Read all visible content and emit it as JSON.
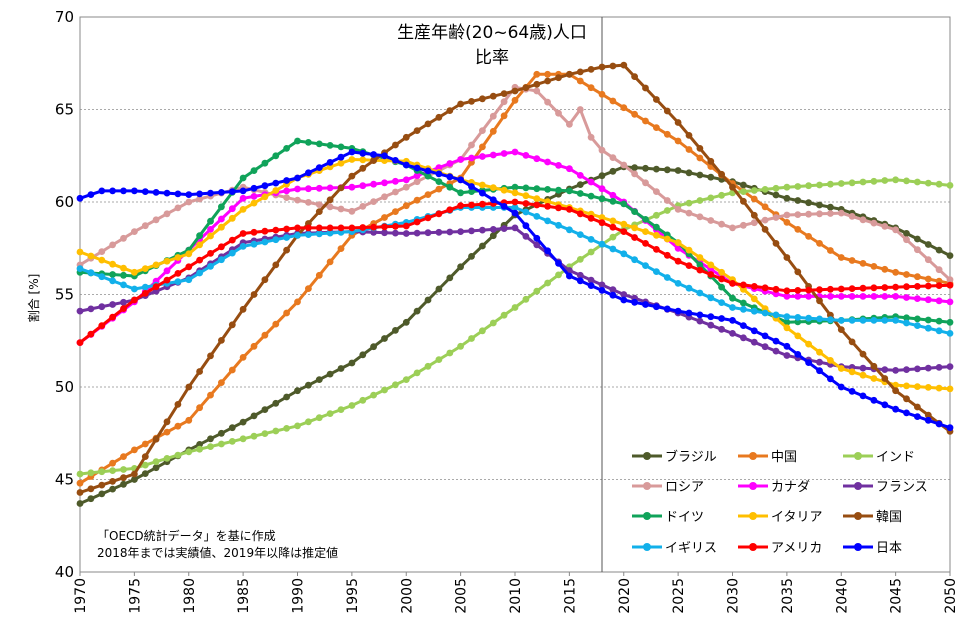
{
  "chart_data": {
    "type": "line",
    "title": "生産年齢(20~64歳)人口",
    "subtitle": "比率",
    "ylabel": "割合 [%]",
    "xlabel": "",
    "xlim": [
      1970,
      2050
    ],
    "ylim": [
      40,
      70
    ],
    "yticks": [
      40,
      45,
      50,
      55,
      60,
      65,
      70
    ],
    "xticks": [
      1970,
      1975,
      1980,
      1985,
      1990,
      1995,
      2000,
      2005,
      2010,
      2015,
      2020,
      2025,
      2030,
      2035,
      2040,
      2045,
      2050
    ],
    "grid": "horizontal",
    "reference_line_x": 2018,
    "legend_position": "bottom-right",
    "notes": [
      "「OECD統計データ」を基に作成",
      "2018年までは実績値、2019年以降は推定値"
    ],
    "series": [
      {
        "name": "ブラジル",
        "color": "#4e5a2a",
        "points": [
          [
            1970,
            43.7
          ],
          [
            1975,
            45.0
          ],
          [
            1980,
            46.6
          ],
          [
            1985,
            48.1
          ],
          [
            1990,
            49.8
          ],
          [
            1995,
            51.3
          ],
          [
            2000,
            53.5
          ],
          [
            2005,
            56.5
          ],
          [
            2010,
            59.3
          ],
          [
            2015,
            60.7
          ],
          [
            2020,
            61.9
          ],
          [
            2025,
            61.7
          ],
          [
            2030,
            61.1
          ],
          [
            2035,
            60.2
          ],
          [
            2040,
            59.6
          ],
          [
            2045,
            58.6
          ],
          [
            2050,
            57.1
          ]
        ]
      },
      {
        "name": "中国",
        "color": "#e8791f",
        "points": [
          [
            1970,
            44.8
          ],
          [
            1975,
            46.6
          ],
          [
            1980,
            48.2
          ],
          [
            1985,
            51.6
          ],
          [
            1990,
            54.6
          ],
          [
            1995,
            58.2
          ],
          [
            2000,
            59.8
          ],
          [
            2005,
            61.3
          ],
          [
            2010,
            65.5
          ],
          [
            2012,
            66.9
          ],
          [
            2015,
            66.9
          ],
          [
            2020,
            65.1
          ],
          [
            2025,
            63.3
          ],
          [
            2030,
            61.0
          ],
          [
            2035,
            58.9
          ],
          [
            2040,
            57.0
          ],
          [
            2045,
            56.2
          ],
          [
            2050,
            55.6
          ]
        ]
      },
      {
        "name": "インド",
        "color": "#9ccf57",
        "points": [
          [
            1970,
            45.3
          ],
          [
            1975,
            45.6
          ],
          [
            1980,
            46.5
          ],
          [
            1985,
            47.2
          ],
          [
            1990,
            47.9
          ],
          [
            1995,
            49.0
          ],
          [
            2000,
            50.4
          ],
          [
            2005,
            52.2
          ],
          [
            2010,
            54.3
          ],
          [
            2015,
            56.5
          ],
          [
            2020,
            58.5
          ],
          [
            2025,
            59.8
          ],
          [
            2030,
            60.5
          ],
          [
            2035,
            60.8
          ],
          [
            2040,
            61.0
          ],
          [
            2045,
            61.2
          ],
          [
            2050,
            60.9
          ]
        ]
      },
      {
        "name": "ロシア",
        "color": "#d89a9a",
        "points": [
          [
            1970,
            56.6
          ],
          [
            1975,
            58.4
          ],
          [
            1980,
            60.0
          ],
          [
            1985,
            60.8
          ],
          [
            1990,
            60.1
          ],
          [
            1995,
            59.5
          ],
          [
            2000,
            60.8
          ],
          [
            2005,
            62.3
          ],
          [
            2010,
            66.2
          ],
          [
            2012,
            66.0
          ],
          [
            2015,
            64.2
          ],
          [
            2016,
            65.0
          ],
          [
            2017,
            63.5
          ],
          [
            2018,
            62.8
          ],
          [
            2020,
            62.0
          ],
          [
            2025,
            59.6
          ],
          [
            2030,
            58.6
          ],
          [
            2035,
            59.3
          ],
          [
            2040,
            59.4
          ],
          [
            2045,
            58.5
          ],
          [
            2050,
            55.8
          ]
        ]
      },
      {
        "name": "カナダ",
        "color": "#ff00ff",
        "points": [
          [
            1970,
            52.4
          ],
          [
            1975,
            54.6
          ],
          [
            1980,
            57.4
          ],
          [
            1985,
            60.2
          ],
          [
            1990,
            60.7
          ],
          [
            1995,
            60.8
          ],
          [
            2000,
            61.2
          ],
          [
            2005,
            62.3
          ],
          [
            2010,
            62.7
          ],
          [
            2015,
            61.8
          ],
          [
            2020,
            60.0
          ],
          [
            2025,
            57.5
          ],
          [
            2030,
            55.6
          ],
          [
            2035,
            54.9
          ],
          [
            2040,
            54.9
          ],
          [
            2045,
            54.9
          ],
          [
            2050,
            54.6
          ]
        ]
      },
      {
        "name": "フランス",
        "color": "#7030a0",
        "points": [
          [
            1970,
            54.1
          ],
          [
            1975,
            54.7
          ],
          [
            1980,
            55.9
          ],
          [
            1985,
            57.8
          ],
          [
            1990,
            58.3
          ],
          [
            1995,
            58.4
          ],
          [
            2000,
            58.3
          ],
          [
            2005,
            58.4
          ],
          [
            2010,
            58.6
          ],
          [
            2015,
            56.3
          ],
          [
            2020,
            55.0
          ],
          [
            2025,
            54.0
          ],
          [
            2030,
            52.9
          ],
          [
            2035,
            51.7
          ],
          [
            2040,
            51.1
          ],
          [
            2045,
            50.9
          ],
          [
            2050,
            51.1
          ]
        ]
      },
      {
        "name": "ドイツ",
        "color": "#10a35a",
        "points": [
          [
            1970,
            56.2
          ],
          [
            1975,
            56.0
          ],
          [
            1980,
            57.4
          ],
          [
            1985,
            61.3
          ],
          [
            1990,
            63.3
          ],
          [
            1995,
            62.9
          ],
          [
            2000,
            62.0
          ],
          [
            2005,
            60.5
          ],
          [
            2010,
            60.8
          ],
          [
            2015,
            60.6
          ],
          [
            2020,
            59.9
          ],
          [
            2025,
            57.8
          ],
          [
            2030,
            54.8
          ],
          [
            2035,
            53.5
          ],
          [
            2040,
            53.6
          ],
          [
            2045,
            53.8
          ],
          [
            2050,
            53.5
          ]
        ]
      },
      {
        "name": "イタリア",
        "color": "#ffbf00",
        "points": [
          [
            1970,
            57.3
          ],
          [
            1975,
            56.2
          ],
          [
            1980,
            57.2
          ],
          [
            1985,
            59.6
          ],
          [
            1990,
            61.3
          ],
          [
            1995,
            62.3
          ],
          [
            2000,
            62.2
          ],
          [
            2005,
            61.2
          ],
          [
            2010,
            60.5
          ],
          [
            2015,
            59.7
          ],
          [
            2020,
            58.8
          ],
          [
            2025,
            57.8
          ],
          [
            2030,
            55.8
          ],
          [
            2035,
            53.2
          ],
          [
            2040,
            51.0
          ],
          [
            2045,
            50.1
          ],
          [
            2050,
            49.9
          ]
        ]
      },
      {
        "name": "韓国",
        "color": "#974d11",
        "points": [
          [
            1970,
            44.3
          ],
          [
            1975,
            45.3
          ],
          [
            1980,
            50.0
          ],
          [
            1985,
            54.2
          ],
          [
            1990,
            58.2
          ],
          [
            1995,
            61.4
          ],
          [
            2000,
            63.5
          ],
          [
            2005,
            65.3
          ],
          [
            2010,
            66.0
          ],
          [
            2015,
            66.9
          ],
          [
            2018,
            67.3
          ],
          [
            2020,
            67.4
          ],
          [
            2025,
            64.3
          ],
          [
            2030,
            60.8
          ],
          [
            2035,
            57.0
          ],
          [
            2040,
            53.1
          ],
          [
            2045,
            49.8
          ],
          [
            2050,
            47.6
          ]
        ]
      },
      {
        "name": "イギリス",
        "color": "#12b0ea",
        "points": [
          [
            1970,
            56.4
          ],
          [
            1975,
            55.3
          ],
          [
            1980,
            55.8
          ],
          [
            1985,
            57.6
          ],
          [
            1990,
            58.2
          ],
          [
            1995,
            58.4
          ],
          [
            2000,
            58.9
          ],
          [
            2005,
            59.7
          ],
          [
            2010,
            59.7
          ],
          [
            2015,
            58.5
          ],
          [
            2020,
            57.2
          ],
          [
            2025,
            55.6
          ],
          [
            2030,
            54.3
          ],
          [
            2035,
            53.8
          ],
          [
            2040,
            53.6
          ],
          [
            2045,
            53.6
          ],
          [
            2050,
            52.9
          ]
        ]
      },
      {
        "name": "アメリカ",
        "color": "#ff0000",
        "points": [
          [
            1970,
            52.4
          ],
          [
            1975,
            54.7
          ],
          [
            1980,
            56.5
          ],
          [
            1985,
            58.3
          ],
          [
            1990,
            58.6
          ],
          [
            1995,
            58.6
          ],
          [
            2000,
            58.7
          ],
          [
            2005,
            59.8
          ],
          [
            2010,
            60.0
          ],
          [
            2015,
            59.6
          ],
          [
            2020,
            58.4
          ],
          [
            2025,
            56.8
          ],
          [
            2030,
            55.6
          ],
          [
            2035,
            55.2
          ],
          [
            2040,
            55.3
          ],
          [
            2045,
            55.4
          ],
          [
            2050,
            55.5
          ]
        ]
      },
      {
        "name": "日本",
        "color": "#0000ff",
        "points": [
          [
            1970,
            60.2
          ],
          [
            1972,
            60.6
          ],
          [
            1975,
            60.6
          ],
          [
            1980,
            60.4
          ],
          [
            1985,
            60.6
          ],
          [
            1990,
            61.3
          ],
          [
            1995,
            62.7
          ],
          [
            1998,
            62.5
          ],
          [
            2000,
            62.0
          ],
          [
            2005,
            61.2
          ],
          [
            2010,
            59.4
          ],
          [
            2015,
            56.0
          ],
          [
            2020,
            54.7
          ],
          [
            2025,
            54.1
          ],
          [
            2030,
            53.6
          ],
          [
            2035,
            52.2
          ],
          [
            2040,
            50.0
          ],
          [
            2045,
            48.8
          ],
          [
            2050,
            47.8
          ]
        ]
      }
    ]
  }
}
